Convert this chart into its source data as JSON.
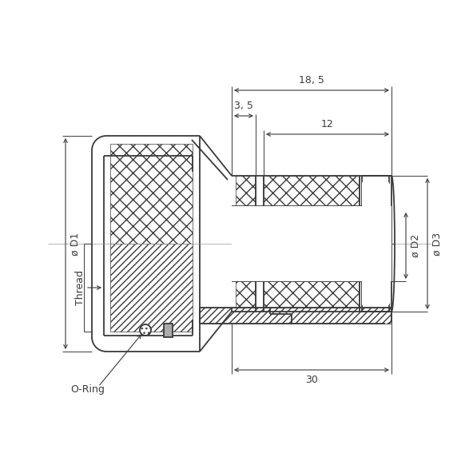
{
  "bg_color": "#ffffff",
  "line_color": "#3a3a3a",
  "dim_color": "#3a3a3a",
  "lw": 1.3,
  "tlw": 0.8,
  "dim_18_5": "18, 5",
  "dim_3_5": "3, 5",
  "dim_12": "12",
  "dim_30": "30",
  "dim_D1": "ø D1",
  "dim_D2": "ø D2",
  "dim_D3": "ø D3",
  "label_thread": "Thread",
  "label_oring": "O-Ring"
}
